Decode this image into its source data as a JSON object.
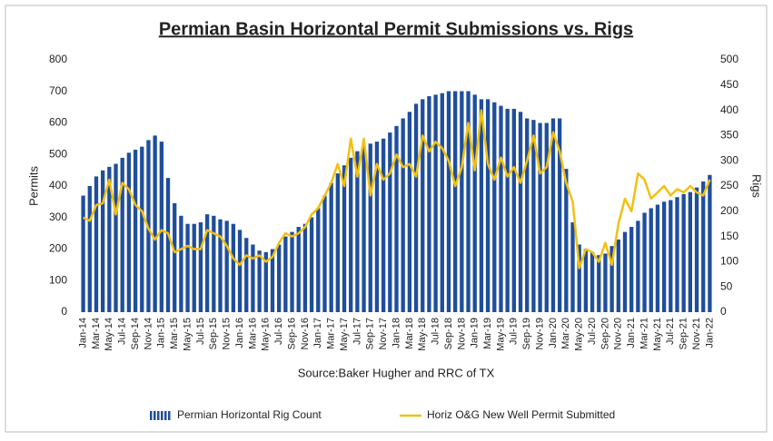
{
  "chart_data": {
    "type": "bar",
    "title": "Permian Basin Horizontal Permit Submissions vs. Rigs",
    "subtitle": "Source:Baker Hugher  and RRC of TX",
    "ylabel": "Permits",
    "y2label": "Rigs",
    "categories": [
      "Jan-14",
      null,
      "Mar-14",
      null,
      "May-14",
      null,
      "Jul-14",
      null,
      "Sep-14",
      null,
      "Nov-14",
      null,
      "Jan-15",
      null,
      "Mar-15",
      null,
      "May-15",
      null,
      "Jul-15",
      null,
      "Sep-15",
      null,
      "Nov-15",
      null,
      "Jan-16",
      null,
      "Mar-16",
      null,
      "May-16",
      null,
      "Jul-16",
      null,
      "Sep-16",
      null,
      "Nov-16",
      null,
      "Jan-17",
      null,
      "Mar-17",
      null,
      "May-17",
      null,
      "Jul-17",
      null,
      "Sep-17",
      null,
      "Nov-17",
      null,
      "Jan-18",
      null,
      "Mar-18",
      null,
      "May-18",
      null,
      "Jul-18",
      null,
      "Sep-18",
      null,
      "Nov-18",
      null,
      "Jan-19",
      null,
      "Mar-19",
      null,
      "May-19",
      null,
      "Jul-19",
      null,
      "Sep-19",
      null,
      "Nov-19",
      null,
      "Jan-20",
      null,
      "Mar-20",
      null,
      "May-20",
      null,
      "Jul-20",
      null,
      "Sep-20",
      null,
      "Nov-20",
      null,
      "Jan-21",
      null,
      "Mar-21",
      null,
      "May-21",
      null,
      "Jul-21",
      null,
      "Sep-21",
      null,
      "Nov-21",
      null,
      "Jan-22"
    ],
    "series": [
      {
        "name": "Permian Horizontal Rig Count",
        "type": "bar",
        "axis": "y2",
        "color": "#1f4e9a",
        "values": [
          231,
          250,
          269,
          281,
          288,
          294,
          306,
          316,
          322,
          328,
          341,
          350,
          338,
          266,
          216,
          191,
          175,
          175,
          178,
          194,
          191,
          184,
          181,
          175,
          163,
          147,
          134,
          122,
          119,
          125,
          134,
          150,
          159,
          169,
          175,
          188,
          206,
          231,
          256,
          275,
          291,
          306,
          319,
          328,
          334,
          338,
          344,
          356,
          369,
          384,
          397,
          413,
          422,
          428,
          431,
          434,
          438,
          438,
          438,
          438,
          431,
          422,
          422,
          416,
          409,
          403,
          403,
          397,
          384,
          381,
          375,
          375,
          384,
          384,
          284,
          178,
          134,
          125,
          119,
          113,
          116,
          131,
          144,
          159,
          169,
          181,
          197,
          206,
          213,
          219,
          222,
          228,
          234,
          238,
          247,
          259,
          272
        ]
      },
      {
        "name": "Horiz O&G New Well Permit Submitted",
        "type": "line",
        "color": "#f2c014",
        "values": [
          300,
          290,
          340,
          345,
          420,
          310,
          410,
          390,
          340,
          320,
          265,
          230,
          260,
          250,
          190,
          200,
          210,
          200,
          200,
          260,
          250,
          240,
          210,
          170,
          150,
          180,
          170,
          180,
          160,
          175,
          220,
          250,
          240,
          250,
          270,
          310,
          330,
          370,
          410,
          470,
          400,
          550,
          430,
          550,
          370,
          470,
          420,
          440,
          500,
          460,
          470,
          430,
          560,
          510,
          540,
          520,
          480,
          400,
          460,
          600,
          450,
          640,
          470,
          420,
          490,
          430,
          460,
          410,
          480,
          560,
          440,
          460,
          570,
          510,
          410,
          350,
          140,
          200,
          190,
          160,
          220,
          150,
          280,
          360,
          320,
          440,
          420,
          360,
          380,
          400,
          370,
          390,
          380,
          400,
          380,
          370,
          420
        ]
      }
    ],
    "ylim": [
      0,
      800
    ],
    "yticks": [
      0,
      100,
      200,
      300,
      400,
      500,
      600,
      700,
      800
    ],
    "y2lim": [
      0,
      500
    ],
    "y2ticks": [
      0,
      50,
      100,
      150,
      200,
      250,
      300,
      350,
      400,
      450,
      500
    ],
    "legend": "bottom"
  }
}
